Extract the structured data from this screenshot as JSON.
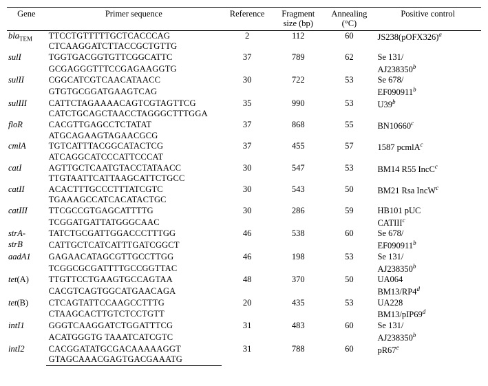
{
  "header": {
    "gene": "Gene",
    "primer": "Primer sequence",
    "reference": "Reference",
    "fragment_l1": "Fragment",
    "fragment_l2": "size (bp)",
    "annealing_l1": "Annealing",
    "annealing_l2": "(°C)",
    "positive": "Positive control"
  },
  "rows": [
    {
      "gene_html": "bla<sub>TEM</sub>",
      "seq1": "TTCCTGTTTTTGCTCACCCAG",
      "seq2": "CTCAAGGATCTTACCGCTGTTG",
      "ref": "2",
      "frag": "112",
      "ann": "60",
      "pos_html": "JS238(pOFX326)<sup class=\"fn\">a</sup>"
    },
    {
      "gene_html": "sulI",
      "seq1": "TGGTGACGGTGTTCGGCATTC",
      "seq2": "GCGAGGGTTTCCGAGAAGGTG",
      "ref": "37",
      "frag": "789",
      "ann": "62",
      "pos_html": "Se 131/<br>AJ238350<sup class=\"fn\">b</sup>"
    },
    {
      "gene_html": "sulII",
      "seq1": "CGGCATCGTCAACATAACC",
      "seq2": "GTGTGCGGATGAAGTCAG",
      "ref": "30",
      "frag": "722",
      "ann": "53",
      "pos_html": "Se 678/<br>EF090911<sup class=\"fn\">b</sup>"
    },
    {
      "gene_html": "sulIII",
      "seq1": "CATTCTAGAAAACAGTCGTAGTTCG",
      "seq2": "CATCTGCAGCTAACCTAGGGCTTTGGA",
      "ref": "35",
      "frag": "990",
      "ann": "53",
      "pos_html": "U39<sup class=\"fn\">b</sup>"
    },
    {
      "gene_html": "floR",
      "seq1": "CACGTTGAGCCTCTATAT",
      "seq2": "ATGCAGAAGTAGAACGCG",
      "ref": "37",
      "frag": "868",
      "ann": "55",
      "pos_html": "BN10660<sup class=\"fn\">c</sup>"
    },
    {
      "gene_html": "cmlA",
      "seq1": "TGTCATTTACGGCATACTCG",
      "seq2": "ATCAGGCATCCCATTCCCAT",
      "ref": "37",
      "frag": "455",
      "ann": "57",
      "pos_html": "1587 pcmlA<sup class=\"fn\">c</sup>"
    },
    {
      "gene_html": "catI",
      "seq1": "AGTTGCTCAATGTACCTATAACC",
      "seq2": "TTGTAATTCATTAAGCATTCTGCC",
      "ref": "30",
      "frag": "547",
      "ann": "53",
      "pos_html": "BM14 R55 IncC<sup class=\"fn\">c</sup>"
    },
    {
      "gene_html": "catII",
      "seq1": "ACACTTTGCCCTTTATCGTC",
      "seq2": "TGAAAGCCATCACATACTGC",
      "ref": "30",
      "frag": "543",
      "ann": "50",
      "pos_html": "BM21 Rsa IncW<sup class=\"fn\">c</sup>"
    },
    {
      "gene_html": "catIII",
      "seq1": "TTCGCCGTGAGCATTTTG",
      "seq2": "TCGGATGATTATGGGCAAC",
      "ref": "30",
      "frag": "286",
      "ann": "59",
      "pos_html": "HB101 pUC<br>CATIII<sup class=\"fn\">c</sup>"
    },
    {
      "gene_html": "strA-<br>strB",
      "seq1": "TATCTGCGATTGGACCCTTTGG",
      "seq2": "CATTGCTCATCATTTGATCGGCT",
      "ref": "46",
      "frag": "538",
      "ann": "60",
      "pos_html": "Se 678/<br>EF090911<sup class=\"fn\">b</sup>"
    },
    {
      "gene_html": "aadA1",
      "seq1": "GAGAACATAGCGTTGCCTTGG",
      "seq2": "TCGGCGCGATTTTGCCGGTTAC",
      "ref": "46",
      "frag": "198",
      "ann": "53",
      "pos_html": "Se 131/<br>AJ238350<sup class=\"fn\">b</sup>"
    },
    {
      "gene_html": "tet<span style=\"font-style:normal\">(A)</span>",
      "seq1": "TTGTTCCTGAAGTGCCAGTAA",
      "seq2": "CACGTCAGTGGCATGAACAGA",
      "ref": "48",
      "frag": "370",
      "ann": "50",
      "pos_html": "UA064<br>BM13/RP4<sup class=\"fn\">d</sup>"
    },
    {
      "gene_html": "tet<span style=\"font-style:normal\">(B)</span>",
      "seq1": "CTCAGTATTCCAAGCCTTTG",
      "seq2": "CTAAGCACTTGTCTCCTGTT",
      "ref": "20",
      "frag": "435",
      "ann": "53",
      "pos_html": "UA228<br>BM13/pIP69<sup class=\"fn\">d</sup>"
    },
    {
      "gene_html": "intI1",
      "seq1": "GGGTCAAGGATCTGGATTTCG",
      "seq2": "ACATGGGTG TAAATCATCGTC",
      "ref": "31",
      "frag": "483",
      "ann": "60",
      "pos_html": "Se 131/<br>AJ238350<sup class=\"fn\">b</sup>"
    },
    {
      "gene_html": "intI2",
      "seq1": "CACGGATATGCGACAAAAAGGT",
      "seq2": "GTAGCAAACGAGTGACGAAATG",
      "ref": "31",
      "frag": "788",
      "ann": "60",
      "pos_html": "pR67<sup class=\"fn\">e</sup>"
    }
  ]
}
